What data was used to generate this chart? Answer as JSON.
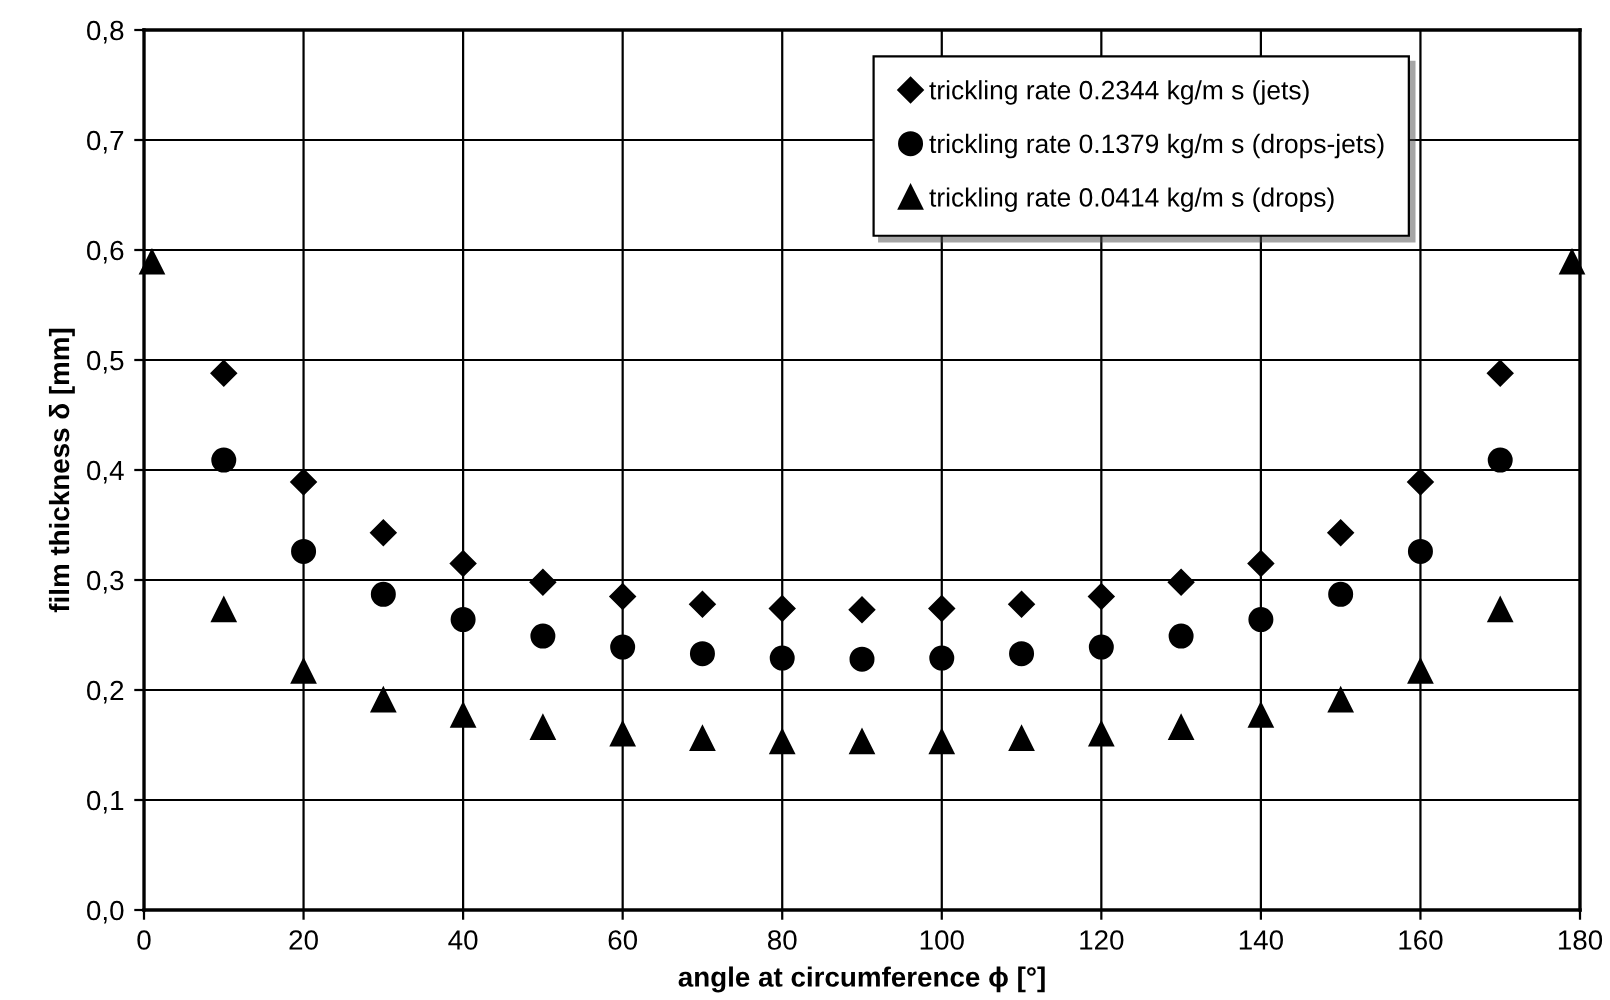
{
  "chart_data": {
    "type": "scatter",
    "xlabel": "angle at circumference ϕ [°]",
    "ylabel": "film thickness δ [mm]",
    "xlim": [
      0,
      180
    ],
    "xticks": [
      0,
      20,
      40,
      60,
      80,
      100,
      120,
      140,
      160,
      180
    ],
    "ylim": [
      0,
      0.8
    ],
    "yticks": [
      {
        "value": 0,
        "label": "0,0"
      },
      {
        "value": 0.1,
        "label": "0,1"
      },
      {
        "value": 0.2,
        "label": "0,2"
      },
      {
        "value": 0.3,
        "label": "0,3"
      },
      {
        "value": 0.4,
        "label": "0,4"
      },
      {
        "value": 0.5,
        "label": "0,5"
      },
      {
        "value": 0.6,
        "label": "0,6"
      },
      {
        "value": 0.7,
        "label": "0,7"
      },
      {
        "value": 0.8,
        "label": "0,8"
      }
    ],
    "grid": true,
    "legend": "top right",
    "series": [
      {
        "name": "trickling rate 0.2344 kg/m s (jets)",
        "color": "#000000",
        "marker": "diamond",
        "x": [
          10,
          20,
          30,
          40,
          50,
          60,
          70,
          80,
          90,
          100,
          110,
          120,
          130,
          140,
          150,
          160,
          170
        ],
        "values": [
          0.488,
          0.389,
          0.343,
          0.315,
          0.298,
          0.285,
          0.278,
          0.274,
          0.273,
          0.274,
          0.278,
          0.285,
          0.298,
          0.315,
          0.343,
          0.389,
          0.488
        ]
      },
      {
        "name": "trickling rate 0.1379 kg/m s (drops-jets)",
        "color": "#000000",
        "marker": "circle",
        "x": [
          10,
          20,
          30,
          40,
          50,
          60,
          70,
          80,
          90,
          100,
          110,
          120,
          130,
          140,
          150,
          160,
          170
        ],
        "values": [
          0.409,
          0.326,
          0.287,
          0.264,
          0.249,
          0.239,
          0.233,
          0.229,
          0.228,
          0.229,
          0.233,
          0.239,
          0.249,
          0.264,
          0.287,
          0.326,
          0.409
        ]
      },
      {
        "name": "trickling rate 0.0414 kg/m s (drops)",
        "color": "#000000",
        "marker": "triangle",
        "x": [
          1,
          10,
          20,
          30,
          40,
          50,
          60,
          70,
          80,
          90,
          100,
          110,
          120,
          130,
          140,
          150,
          160,
          170,
          179
        ],
        "values": [
          0.589,
          0.273,
          0.217,
          0.191,
          0.177,
          0.166,
          0.16,
          0.156,
          0.153,
          0.153,
          0.153,
          0.156,
          0.16,
          0.166,
          0.177,
          0.191,
          0.217,
          0.273,
          0.589
        ]
      }
    ]
  }
}
